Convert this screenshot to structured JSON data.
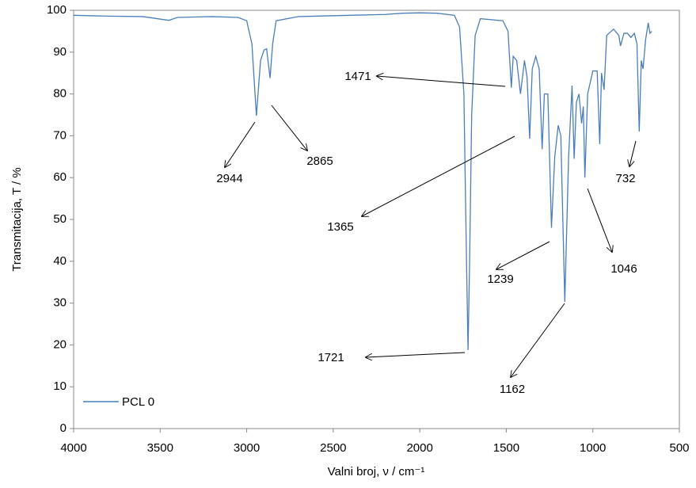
{
  "chart_data": {
    "type": "line",
    "y_label": "Transmitacija, T / %",
    "x_label": "Valni broj, ν / cm⁻¹",
    "xlim": [
      4000,
      500
    ],
    "xticks": [
      4000,
      3500,
      3000,
      2500,
      2000,
      1500,
      1000,
      500
    ],
    "ylim": [
      0,
      100
    ],
    "yticks": [
      0,
      10,
      20,
      30,
      40,
      50,
      60,
      70,
      80,
      90,
      100
    ],
    "grid": false,
    "legend": "lower left",
    "x": [
      4000,
      3800,
      3600,
      3450,
      3400,
      3200,
      3050,
      3000,
      2970,
      2944,
      2920,
      2900,
      2885,
      2865,
      2850,
      2830,
      2700,
      2400,
      2200,
      2100,
      2000,
      1900,
      1800,
      1770,
      1745,
      1730,
      1721,
      1712,
      1700,
      1680,
      1650,
      1520,
      1490,
      1471,
      1460,
      1440,
      1418,
      1395,
      1380,
      1365,
      1350,
      1330,
      1310,
      1293,
      1280,
      1260,
      1239,
      1220,
      1200,
      1185,
      1162,
      1140,
      1120,
      1108,
      1095,
      1080,
      1065,
      1055,
      1046,
      1030,
      1000,
      975,
      960,
      950,
      935,
      920,
      880,
      850,
      840,
      820,
      800,
      780,
      760,
      745,
      732,
      720,
      710,
      695,
      680,
      670,
      660
    ],
    "series": [
      {
        "name": "PCL 0",
        "color": "#4a7ebb",
        "values": [
          98.8,
          98.6,
          98.5,
          97.6,
          98.3,
          98.5,
          98.3,
          97.5,
          92,
          74.8,
          88,
          90.5,
          90.8,
          83.8,
          92,
          97.5,
          98.5,
          98.8,
          99,
          99.3,
          99.4,
          99.3,
          98.8,
          96,
          80,
          40,
          18.8,
          40,
          75,
          94,
          98,
          97.5,
          95,
          81.5,
          89,
          88,
          80,
          88,
          84,
          69.3,
          86,
          89,
          86,
          66.8,
          80,
          80,
          48,
          65,
          72.5,
          70,
          30.3,
          65,
          82,
          64.5,
          78,
          80,
          73,
          77,
          60,
          80,
          85.5,
          85.5,
          68,
          85,
          81,
          94,
          95.5,
          94,
          91.5,
          94.5,
          94.5,
          93.5,
          94.5,
          92,
          71,
          88,
          86,
          93,
          97,
          94.5,
          95
        ]
      }
    ],
    "annotations": [
      "2944",
      "2865",
      "1471",
      "1365",
      "1239",
      "1162",
      "1721",
      "1046",
      "732"
    ]
  }
}
